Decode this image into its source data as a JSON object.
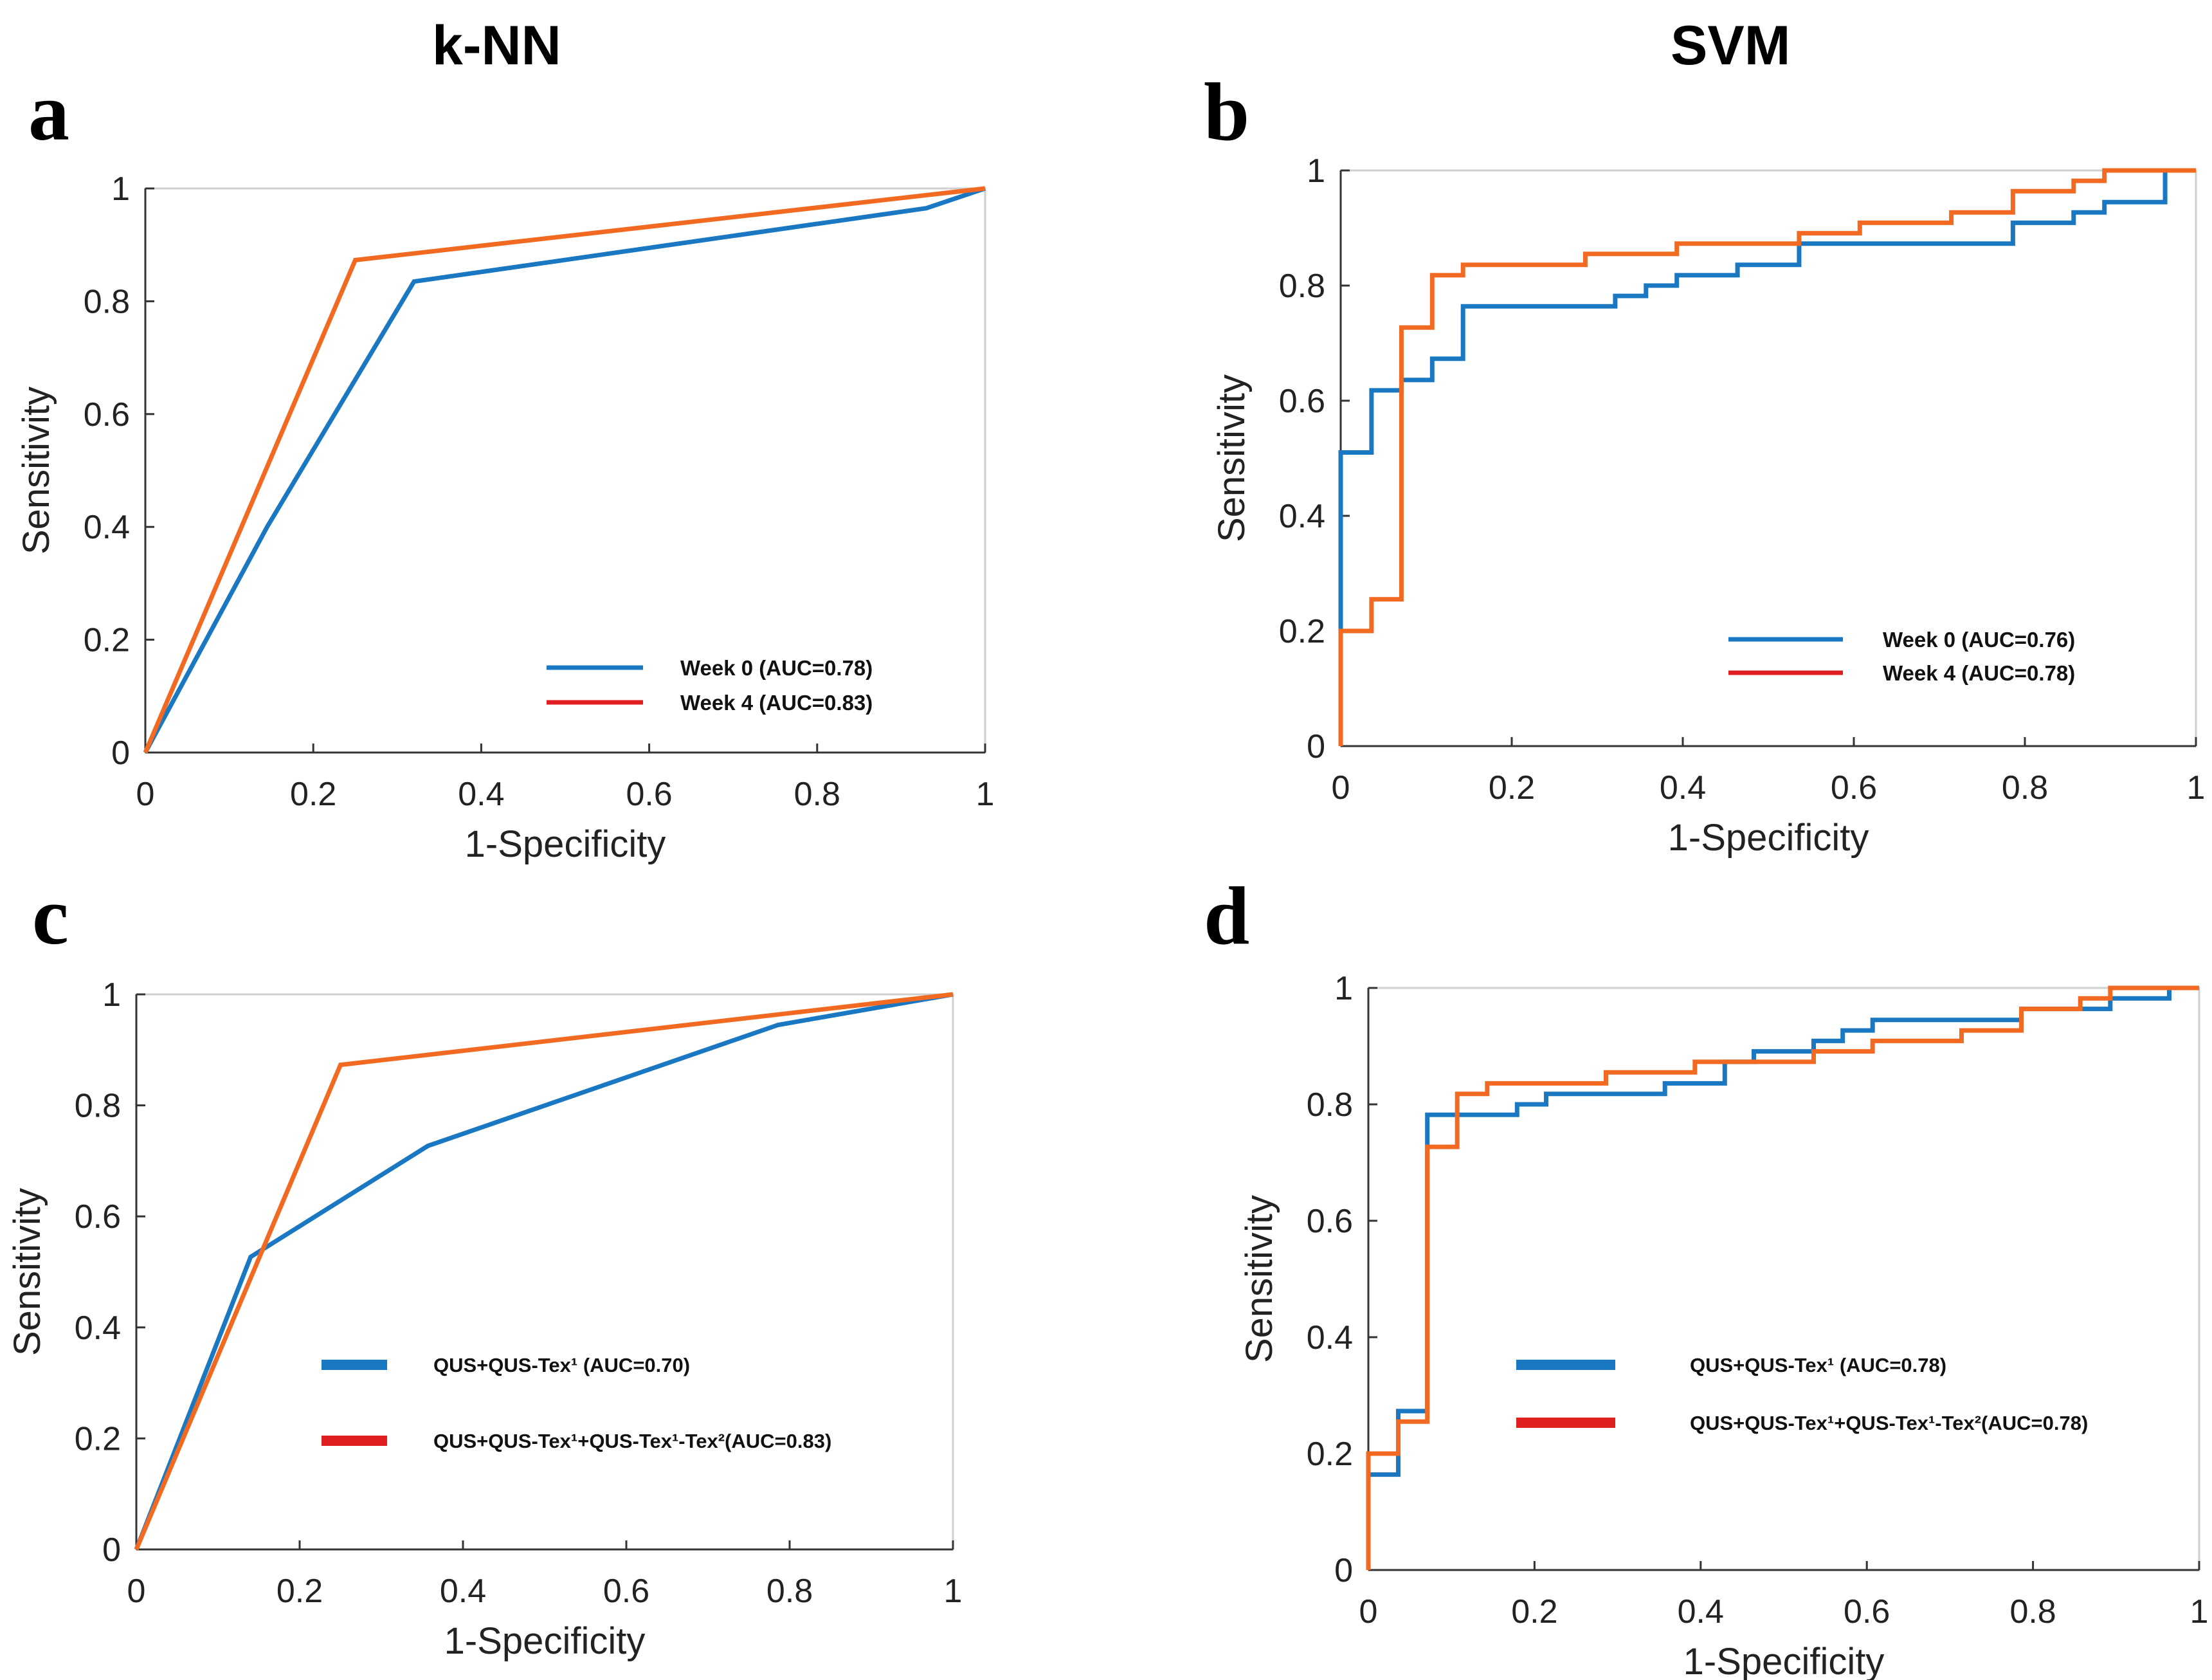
{
  "column_titles": {
    "left": "k-NN",
    "right": "SVM"
  },
  "colors": {
    "blue": "#1a78c2",
    "orange": "#f26a21",
    "legend_red": "#e02020",
    "axis": "#333333",
    "grid": "#cfcfcf"
  },
  "chart_data": [
    {
      "panel": "a",
      "type": "line",
      "xlabel": "1-Specificity",
      "ylabel": "Sensitivity",
      "xlim": [
        0,
        1
      ],
      "ylim": [
        0,
        1
      ],
      "xticks": [
        "0",
        "0.2",
        "0.4",
        "0.6",
        "0.8",
        "1"
      ],
      "yticks": [
        "0",
        "0.2",
        "0.4",
        "0.6",
        "0.8",
        "1"
      ],
      "legend_position": "bottom-right",
      "series": [
        {
          "name": "Week 0 (AUC=0.78)",
          "color": "#1a78c2",
          "legend_color": "#1a78c2",
          "points": [
            [
              0,
              0
            ],
            [
              0.145,
              0.4
            ],
            [
              0.32,
              0.835
            ],
            [
              0.93,
              0.965
            ],
            [
              1,
              1
            ]
          ]
        },
        {
          "name": "Week 4 (AUC=0.83)",
          "color": "#f26a21",
          "legend_color": "#e02020",
          "points": [
            [
              0,
              0
            ],
            [
              0.25,
              0.873
            ],
            [
              1,
              1
            ]
          ]
        }
      ]
    },
    {
      "panel": "b",
      "type": "line",
      "xlabel": "1-Specificity",
      "ylabel": "Sensitivity",
      "xlim": [
        0,
        1
      ],
      "ylim": [
        0,
        1
      ],
      "xticks": [
        "0",
        "0.2",
        "0.4",
        "0.6",
        "0.8",
        "1"
      ],
      "yticks": [
        "0",
        "0.2",
        "0.4",
        "0.6",
        "0.8",
        "1"
      ],
      "legend_position": "bottom-right",
      "series": [
        {
          "name": "Week 0 (AUC=0.76)",
          "color": "#1a78c2",
          "legend_color": "#1a78c2",
          "points": [
            [
              0,
              0.2
            ],
            [
              0,
              0.51
            ],
            [
              0.036,
              0.51
            ],
            [
              0.036,
              0.618
            ],
            [
              0.071,
              0.618
            ],
            [
              0.071,
              0.636
            ],
            [
              0.107,
              0.636
            ],
            [
              0.107,
              0.673
            ],
            [
              0.143,
              0.673
            ],
            [
              0.143,
              0.764
            ],
            [
              0.321,
              0.764
            ],
            [
              0.321,
              0.782
            ],
            [
              0.357,
              0.782
            ],
            [
              0.357,
              0.8
            ],
            [
              0.393,
              0.8
            ],
            [
              0.393,
              0.818
            ],
            [
              0.464,
              0.818
            ],
            [
              0.464,
              0.836
            ],
            [
              0.536,
              0.836
            ],
            [
              0.536,
              0.873
            ],
            [
              0.786,
              0.873
            ],
            [
              0.786,
              0.909
            ],
            [
              0.857,
              0.909
            ],
            [
              0.857,
              0.927
            ],
            [
              0.893,
              0.927
            ],
            [
              0.893,
              0.945
            ],
            [
              0.964,
              0.945
            ],
            [
              0.964,
              1
            ]
          ]
        },
        {
          "name": "Week 4 (AUC=0.78)",
          "color": "#f26a21",
          "legend_color": "#e02020",
          "points": [
            [
              0,
              0
            ],
            [
              0,
              0.2
            ],
            [
              0.036,
              0.2
            ],
            [
              0.036,
              0.255
            ],
            [
              0.071,
              0.255
            ],
            [
              0.071,
              0.727
            ],
            [
              0.107,
              0.727
            ],
            [
              0.107,
              0.818
            ],
            [
              0.143,
              0.818
            ],
            [
              0.143,
              0.836
            ],
            [
              0.286,
              0.836
            ],
            [
              0.286,
              0.855
            ],
            [
              0.393,
              0.855
            ],
            [
              0.393,
              0.873
            ],
            [
              0.536,
              0.873
            ],
            [
              0.536,
              0.891
            ],
            [
              0.607,
              0.891
            ],
            [
              0.607,
              0.909
            ],
            [
              0.714,
              0.909
            ],
            [
              0.714,
              0.927
            ],
            [
              0.786,
              0.927
            ],
            [
              0.786,
              0.964
            ],
            [
              0.857,
              0.964
            ],
            [
              0.857,
              0.982
            ],
            [
              0.893,
              0.982
            ],
            [
              0.893,
              1
            ],
            [
              1,
              1
            ]
          ]
        }
      ]
    },
    {
      "panel": "c",
      "type": "line",
      "xlabel": "1-Specificity",
      "ylabel": "Sensitivity",
      "xlim": [
        0,
        1
      ],
      "ylim": [
        0,
        1
      ],
      "xticks": [
        "0",
        "0.2",
        "0.4",
        "0.6",
        "0.8",
        "1"
      ],
      "yticks": [
        "0",
        "0.2",
        "0.4",
        "0.6",
        "0.8",
        "1"
      ],
      "legend_position": "center",
      "series": [
        {
          "name": "QUS+QUS-Tex¹ (AUC=0.70)",
          "color": "#1a78c2",
          "legend_color": "#1a78c2",
          "points": [
            [
              0,
              0
            ],
            [
              0.14,
              0.527
            ],
            [
              0.357,
              0.727
            ],
            [
              0.786,
              0.945
            ],
            [
              1,
              1
            ]
          ]
        },
        {
          "name": "QUS+QUS-Tex¹+QUS-Tex¹-Tex²(AUC=0.83)",
          "color": "#f26a21",
          "legend_color": "#e02020",
          "points": [
            [
              0,
              0
            ],
            [
              0.25,
              0.873
            ],
            [
              1,
              1
            ]
          ]
        }
      ]
    },
    {
      "panel": "d",
      "type": "line",
      "xlabel": "1-Specificity",
      "ylabel": "Sensitivity",
      "xlim": [
        0,
        1
      ],
      "ylim": [
        0,
        1
      ],
      "xticks": [
        "0",
        "0.2",
        "0.4",
        "0.6",
        "0.8",
        "1"
      ],
      "yticks": [
        "0",
        "0.2",
        "0.4",
        "0.6",
        "0.8",
        "1"
      ],
      "legend_position": "center",
      "series": [
        {
          "name": "QUS+QUS-Tex¹ (AUC=0.78)",
          "color": "#1a78c2",
          "legend_color": "#1a78c2",
          "points": [
            [
              0,
              0.164
            ],
            [
              0.036,
              0.164
            ],
            [
              0.036,
              0.273
            ],
            [
              0.071,
              0.273
            ],
            [
              0.071,
              0.782
            ],
            [
              0.179,
              0.782
            ],
            [
              0.179,
              0.8
            ],
            [
              0.214,
              0.8
            ],
            [
              0.214,
              0.818
            ],
            [
              0.357,
              0.818
            ],
            [
              0.357,
              0.836
            ],
            [
              0.429,
              0.836
            ],
            [
              0.429,
              0.873
            ],
            [
              0.464,
              0.873
            ],
            [
              0.464,
              0.891
            ],
            [
              0.536,
              0.891
            ],
            [
              0.536,
              0.909
            ],
            [
              0.571,
              0.909
            ],
            [
              0.571,
              0.927
            ],
            [
              0.607,
              0.927
            ],
            [
              0.607,
              0.945
            ],
            [
              0.786,
              0.945
            ],
            [
              0.786,
              0.964
            ],
            [
              0.893,
              0.964
            ],
            [
              0.893,
              0.982
            ],
            [
              0.964,
              0.982
            ],
            [
              0.964,
              1
            ],
            [
              1,
              1
            ]
          ]
        },
        {
          "name": "QUS+QUS-Tex¹+QUS-Tex¹-Tex²(AUC=0.78)",
          "color": "#f26a21",
          "legend_color": "#e02020",
          "points": [
            [
              0,
              0
            ],
            [
              0,
              0.2
            ],
            [
              0.036,
              0.2
            ],
            [
              0.036,
              0.255
            ],
            [
              0.071,
              0.255
            ],
            [
              0.071,
              0.727
            ],
            [
              0.107,
              0.727
            ],
            [
              0.107,
              0.818
            ],
            [
              0.143,
              0.818
            ],
            [
              0.143,
              0.836
            ],
            [
              0.286,
              0.836
            ],
            [
              0.286,
              0.855
            ],
            [
              0.393,
              0.855
            ],
            [
              0.393,
              0.873
            ],
            [
              0.536,
              0.873
            ],
            [
              0.536,
              0.891
            ],
            [
              0.607,
              0.891
            ],
            [
              0.607,
              0.909
            ],
            [
              0.714,
              0.909
            ],
            [
              0.714,
              0.927
            ],
            [
              0.786,
              0.927
            ],
            [
              0.786,
              0.964
            ],
            [
              0.857,
              0.964
            ],
            [
              0.857,
              0.982
            ],
            [
              0.893,
              0.982
            ],
            [
              0.893,
              1
            ],
            [
              1,
              1
            ]
          ]
        }
      ]
    }
  ]
}
